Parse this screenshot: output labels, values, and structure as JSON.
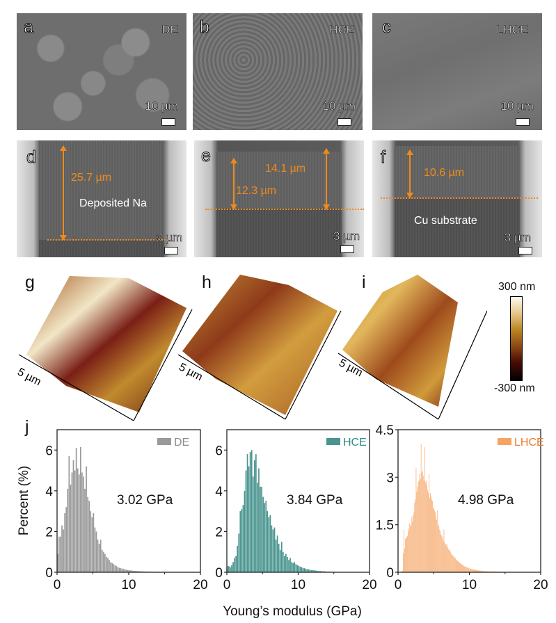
{
  "figure": {
    "sem_top": [
      {
        "label": "a",
        "electrolyte": "DE",
        "scale": "10 µm"
      },
      {
        "label": "b",
        "electrolyte": "HCE",
        "scale": "10 µm"
      },
      {
        "label": "c",
        "electrolyte": "LHCE",
        "scale": "10 µm"
      }
    ],
    "sem_cross": [
      {
        "label": "d",
        "scale": "3 µm",
        "measurements": [
          "25.7 µm"
        ],
        "annotation": "Deposited Na"
      },
      {
        "label": "e",
        "scale": "3 µm",
        "measurements": [
          "14.1 µm",
          "12.3 µm"
        ],
        "annotation": ""
      },
      {
        "label": "f",
        "scale": "3 µm",
        "measurements": [
          "10.6 µm"
        ],
        "annotation": "Cu substrate"
      }
    ],
    "afm": [
      {
        "label": "g",
        "scale": "5 µm"
      },
      {
        "label": "h",
        "scale": "5 µm"
      },
      {
        "label": "i",
        "scale": "5 µm"
      }
    ],
    "colorbar": {
      "max": "300 nm",
      "min": "-300 nm"
    },
    "panel_j_label": "j"
  },
  "chart_data": [
    {
      "type": "bar",
      "title": "",
      "legend": "DE",
      "legend_position": "top-right",
      "annotation": "3.02 GPa",
      "color": "#9a9a9a",
      "xlabel": "Young’s modulus (GPa)",
      "ylabel": "Percent (%)",
      "xlim": [
        0,
        20
      ],
      "ylim": [
        0,
        7
      ],
      "xticks": [
        "0",
        "10",
        "20"
      ],
      "yticks": [
        "0",
        "2",
        "4",
        "6"
      ],
      "bin_width": 0.2,
      "x_start": 0,
      "values": [
        0.9,
        1.75,
        1.75,
        2.3,
        2.1,
        2.9,
        3.2,
        4.1,
        5.7,
        4.3,
        4.9,
        5.5,
        5.0,
        6.1,
        5.1,
        4.8,
        6.15,
        4.9,
        4.7,
        4.1,
        5.2,
        3.7,
        3.5,
        3.0,
        2.7,
        2.9,
        2.2,
        2.0,
        1.6,
        1.4,
        1.6,
        1.1,
        1.0,
        0.9,
        0.75,
        0.7,
        0.6,
        0.5,
        0.45,
        0.4,
        0.35,
        0.3,
        0.25,
        0.22,
        0.2,
        0.18,
        0.16,
        0.14,
        0.12,
        0.11,
        0.1,
        0.09,
        0.08,
        0.07,
        0.07,
        0.06,
        0.06,
        0.05,
        0.05,
        0.04,
        0.04,
        0.04,
        0.03,
        0.03,
        0.03,
        0.03,
        0.02,
        0.02,
        0.02,
        0.02,
        0.02,
        0.02,
        0.01,
        0.01,
        0.01,
        0.01,
        0.01,
        0.01,
        0.01,
        0.01,
        0.01,
        0.01,
        0.01,
        0.01,
        0.01,
        0.01,
        0.01,
        0.01,
        0.01,
        0.01,
        0.01,
        0.01,
        0.01,
        0.01,
        0.01,
        0.01,
        0.01,
        0.01,
        0.01,
        0.01
      ]
    },
    {
      "type": "bar",
      "title": "",
      "legend": "HCE",
      "legend_position": "top-right",
      "annotation": "3.84 GPa",
      "color": "#4a9590",
      "xlabel": "Young’s modulus (GPa)",
      "ylabel": "",
      "xlim": [
        0,
        20
      ],
      "ylim": [
        0,
        7
      ],
      "xticks": [
        "0",
        "10",
        "20"
      ],
      "yticks": [
        "0",
        "2",
        "4",
        "6"
      ],
      "bin_width": 0.2,
      "x_start": 0,
      "values": [
        0.3,
        0.3,
        0.25,
        0.35,
        0.5,
        0.7,
        0.8,
        1.3,
        1.9,
        3.0,
        3.1,
        3.3,
        4.0,
        5.0,
        5.8,
        5.2,
        5.9,
        6.0,
        4.7,
        5.5,
        5.8,
        4.4,
        5.1,
        4.2,
        4.2,
        3.7,
        3.4,
        3.5,
        3.0,
        2.7,
        2.8,
        2.3,
        2.1,
        2.2,
        1.6,
        1.8,
        1.4,
        1.1,
        1.5,
        1.0,
        0.8,
        0.9,
        0.75,
        0.6,
        0.7,
        0.5,
        0.45,
        0.5,
        0.4,
        0.35,
        0.32,
        0.28,
        0.25,
        0.2,
        0.2,
        0.17,
        0.15,
        0.14,
        0.12,
        0.1,
        0.1,
        0.09,
        0.08,
        0.07,
        0.06,
        0.06,
        0.05,
        0.05,
        0.04,
        0.04,
        0.03,
        0.03,
        0.03,
        0.02,
        0.02,
        0.02,
        0.02,
        0.02,
        0.01,
        0.01,
        0.01,
        0.01,
        0.01,
        0.01,
        0.01,
        0.01,
        0.01,
        0.01,
        0.01,
        0.01,
        0.01,
        0.01,
        0.01,
        0.01,
        0.01,
        0.01,
        0.01,
        0.01,
        0.01,
        0.01
      ]
    },
    {
      "type": "bar",
      "title": "",
      "legend": "LHCE",
      "legend_position": "top-right",
      "annotation": "4.98 GPa",
      "color": "#f5a463",
      "xlabel": "Young’s modulus (GPa)",
      "ylabel": "",
      "xlim": [
        0,
        20
      ],
      "ylim": [
        0,
        4.5
      ],
      "xticks": [
        "0",
        "10",
        "20"
      ],
      "yticks": [
        "0",
        "1.5",
        "3",
        "4.5"
      ],
      "bin_width": 0.1,
      "x_start": 0,
      "values": [
        0,
        0,
        0,
        0,
        0,
        0,
        0.05,
        0.6,
        1.35,
        0.75,
        1.05,
        1.1,
        1.1,
        1.15,
        1.4,
        1.3,
        1.55,
        1.45,
        1.5,
        1.75,
        1.6,
        1.8,
        1.9,
        2.2,
        2.3,
        3.3,
        2.55,
        2.7,
        2.85,
        2.9,
        3.1,
        2.95,
        4.05,
        3.15,
        3.2,
        3.05,
        2.9,
        3.95,
        2.85,
        2.9,
        2.75,
        2.6,
        2.5,
        3.1,
        2.35,
        2.5,
        2.4,
        2.3,
        2.25,
        2.05,
        2.0,
        1.95,
        1.9,
        1.75,
        1.65,
        1.95,
        1.45,
        1.5,
        1.35,
        1.3,
        1.2,
        1.15,
        1.1,
        1.0,
        1.35,
        0.95,
        0.9,
        0.85,
        0.9,
        0.8,
        0.75,
        0.7,
        0.7,
        0.65,
        0.6,
        0.55,
        0.55,
        0.5,
        0.5,
        0.45,
        0.45,
        0.4,
        0.38,
        0.36,
        0.34,
        0.32,
        0.3,
        0.28,
        0.26,
        0.25,
        0.24,
        0.22,
        0.2,
        0.19,
        0.18,
        0.17,
        0.16,
        0.15,
        0.14,
        0.13,
        0.12,
        0.12,
        0.11,
        0.1,
        0.1,
        0.09,
        0.09,
        0.08,
        0.08,
        0.07,
        0.07,
        0.06,
        0.06,
        0.06,
        0.05,
        0.05,
        0.05,
        0.04,
        0.04,
        0.04,
        0.04,
        0.03,
        0.03,
        0.03,
        0.03,
        0.03,
        0.03,
        0.02,
        0.02,
        0.02,
        0.02,
        0.02,
        0.02,
        0.02,
        0.02,
        0.02,
        0.02,
        0.02,
        0.02,
        0.02,
        0.01,
        0.01,
        0.01,
        0.01,
        0.01,
        0.01,
        0.01,
        0.01,
        0.01,
        0.01,
        0.01,
        0.01,
        0.01,
        0.01,
        0.01,
        0.01,
        0.01,
        0.01,
        0.01,
        0.01,
        0.01,
        0.01,
        0.01,
        0.01,
        0.01,
        0.01,
        0.01,
        0.01,
        0.01,
        0.01,
        0.01,
        0.01,
        0.01,
        0.01,
        0.01,
        0.01,
        0.01,
        0.01,
        0.01,
        0.01,
        0.01,
        0.01,
        0.01,
        0.01,
        0.01,
        0.01,
        0.01,
        0.01,
        0.01,
        0.01,
        0.01,
        0.01,
        0.01,
        0.01,
        0.01
      ]
    }
  ]
}
